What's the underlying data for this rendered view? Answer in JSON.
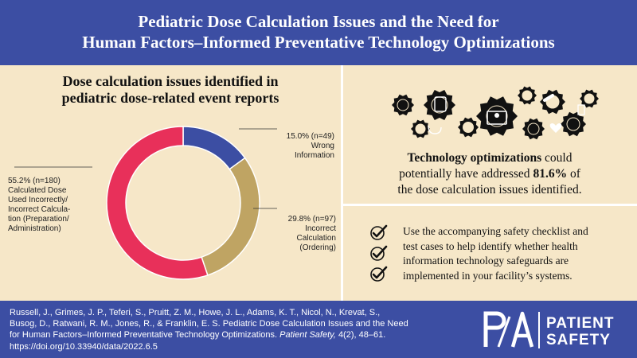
{
  "header": {
    "title_line1": "Pediatric Dose Calculation Issues and the Need for",
    "title_line2": "Human Factors–Informed Preventative Technology Optimizations"
  },
  "chart_data": {
    "type": "pie",
    "variant": "donut",
    "title_line1": "Dose calculation issues identified in",
    "title_line2": "pediatric dose-related event reports",
    "slices": [
      {
        "label_line1": "15.0% (n=49)",
        "label_line2": "Wrong",
        "label_line3": "Information",
        "value": 15.0,
        "n": 49,
        "color": "#3c4ea3"
      },
      {
        "label_line1": "29.8% (n=97)",
        "label_line2": "Incorrect",
        "label_line3": "Calculation",
        "label_line4": "(Ordering)",
        "value": 29.8,
        "n": 97,
        "color": "#bfa463"
      },
      {
        "label_line1": "55.2% (n=180)",
        "label_line2": "Calculated Dose",
        "label_line3": "Used Incorrectly/",
        "label_line4": "Incorrect Calcula-",
        "label_line5": "tion (Preparation/",
        "label_line6": "Administration)",
        "value": 55.2,
        "n": 180,
        "color": "#e8305a"
      }
    ]
  },
  "tech": {
    "bold": "Technology optimizations",
    "text1": "could",
    "text2": "potentially have addressed",
    "pct": "81.6%",
    "text3": "of",
    "text4": "the dose calculation issues identified."
  },
  "checklist": {
    "line1": "Use the accompanying safety checklist and",
    "line2": "test cases to help identify whether health",
    "line3": "information technology safeguards are",
    "line4": "implemented in your facility’s systems."
  },
  "citation": {
    "line1": "Russell, J., Grimes, J. P., Teferi, S., Pruitt, Z. M., Howe, J. L., Adams, K. T., Nicol, N., Krevat, S.,",
    "line2": "Busog, D., Ratwani, R. M., Jones, R., & Franklin, E. S. Pediatric Dose Calculation Issues and the Need",
    "line3a": "for Human Factors–Informed Preventative Technology Optimizations.",
    "line3b": "Patient Safety,",
    "line3c": "4(2), 48–61.",
    "line4": "https://doi.org/10.33940/data/2022.6.5"
  },
  "logo": {
    "mark": "PSA",
    "word1": "PATIENT",
    "word2": "SAFETY"
  },
  "colors": {
    "navy": "#3c4ea3",
    "cream": "#f6e7c8",
    "red": "#e8305a",
    "tan": "#bfa463"
  }
}
